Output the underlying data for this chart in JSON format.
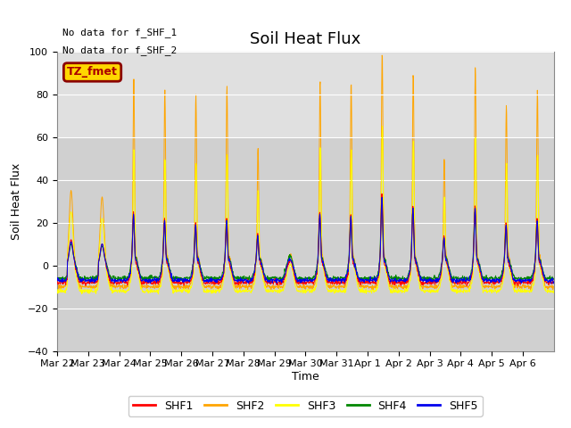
{
  "title": "Soil Heat Flux",
  "ylabel": "Soil Heat Flux",
  "xlabel": "Time",
  "ylim": [
    -40,
    100
  ],
  "annotation_top_left": [
    "No data for f_SHF_1",
    "No data for f_SHF_2"
  ],
  "box_label": "TZ_fmet",
  "box_color": "#FFD700",
  "box_border": "#8B0000",
  "bg_upper": "#D8D8D8",
  "bg_lower": "#C8C8C8",
  "legend_entries": [
    "SHF1",
    "SHF2",
    "SHF3",
    "SHF4",
    "SHF5"
  ],
  "legend_colors": [
    "#FF0000",
    "#FFA500",
    "#FFFF00",
    "#008800",
    "#0000EE"
  ],
  "title_fontsize": 13,
  "label_fontsize": 9,
  "tick_fontsize": 8,
  "n_days": 16
}
